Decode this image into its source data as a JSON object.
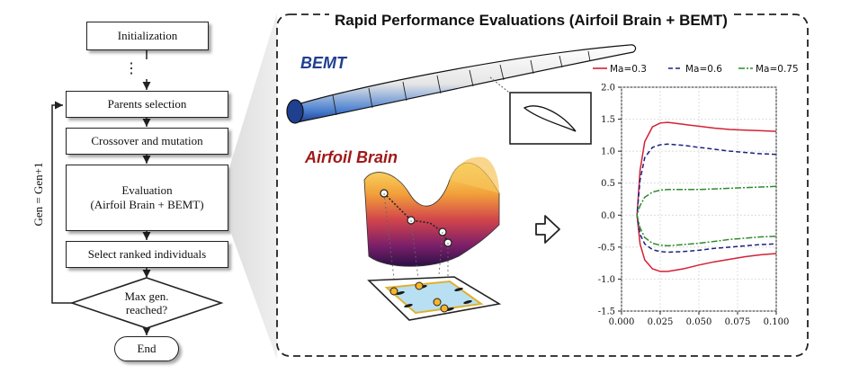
{
  "flowchart": {
    "steps": {
      "init": "Initialization",
      "ellipsis": "⋮",
      "parents": "Parents selection",
      "crossover": "Crossover and mutation",
      "eval_line1": "Evaluation",
      "eval_line2": "(Airfoil Brain + BEMT)",
      "select": "Select ranked individuals",
      "decision_line1": "Max gen.",
      "decision_line2": "reached?",
      "end": "End"
    },
    "loop_label": "Gen = Gen+1"
  },
  "panel": {
    "title": "Rapid Performance Evaluations (Airfoil Brain + BEMT)",
    "bemt_label": "BEMT",
    "airfoil_brain_label": "Airfoil Brain",
    "accent_colors": {
      "bemt": "#1f3f8f",
      "airfoil_brain": "#a01818",
      "blade": "#4a7fd0"
    }
  },
  "chart_data": {
    "type": "line",
    "x_ticks": [
      "0.000",
      "0.025",
      "0.050",
      "0.075",
      "0.100"
    ],
    "y_ticks": [
      "2.0",
      "1.5",
      "1.0",
      "0.5",
      "0.0",
      "-0.5",
      "-1.0",
      "-1.5"
    ],
    "xlim": [
      0,
      0.1
    ],
    "ylim": [
      -1.5,
      2.0
    ],
    "grid": true,
    "legend_placement": "top",
    "series": [
      {
        "name": "Ma=0.3",
        "color": "#d42035",
        "dash": "solid",
        "upper": [
          [
            0.01,
            0.0
          ],
          [
            0.012,
            0.7
          ],
          [
            0.015,
            1.15
          ],
          [
            0.02,
            1.38
          ],
          [
            0.025,
            1.44
          ],
          [
            0.03,
            1.45
          ],
          [
            0.04,
            1.42
          ],
          [
            0.05,
            1.39
          ],
          [
            0.06,
            1.36
          ],
          [
            0.07,
            1.34
          ],
          [
            0.08,
            1.33
          ],
          [
            0.09,
            1.32
          ],
          [
            0.1,
            1.31
          ]
        ],
        "lower": [
          [
            0.01,
            0.0
          ],
          [
            0.012,
            -0.45
          ],
          [
            0.015,
            -0.7
          ],
          [
            0.02,
            -0.84
          ],
          [
            0.025,
            -0.88
          ],
          [
            0.03,
            -0.88
          ],
          [
            0.04,
            -0.84
          ],
          [
            0.05,
            -0.78
          ],
          [
            0.06,
            -0.73
          ],
          [
            0.07,
            -0.69
          ],
          [
            0.08,
            -0.65
          ],
          [
            0.09,
            -0.62
          ],
          [
            0.1,
            -0.6
          ]
        ]
      },
      {
        "name": "Ma=0.6",
        "color": "#1a237e",
        "dash": "dashed",
        "upper": [
          [
            0.01,
            0.0
          ],
          [
            0.012,
            0.55
          ],
          [
            0.015,
            0.9
          ],
          [
            0.02,
            1.06
          ],
          [
            0.025,
            1.1
          ],
          [
            0.03,
            1.11
          ],
          [
            0.04,
            1.09
          ],
          [
            0.05,
            1.06
          ],
          [
            0.06,
            1.03
          ],
          [
            0.07,
            1.0
          ],
          [
            0.08,
            0.98
          ],
          [
            0.09,
            0.96
          ],
          [
            0.1,
            0.95
          ]
        ],
        "lower": [
          [
            0.01,
            0.0
          ],
          [
            0.012,
            -0.3
          ],
          [
            0.015,
            -0.45
          ],
          [
            0.02,
            -0.54
          ],
          [
            0.025,
            -0.57
          ],
          [
            0.03,
            -0.58
          ],
          [
            0.04,
            -0.57
          ],
          [
            0.05,
            -0.55
          ],
          [
            0.06,
            -0.52
          ],
          [
            0.07,
            -0.5
          ],
          [
            0.08,
            -0.48
          ],
          [
            0.09,
            -0.46
          ],
          [
            0.1,
            -0.45
          ]
        ]
      },
      {
        "name": "Ma=0.75",
        "color": "#2e8b2e",
        "dash": "dashdot",
        "upper": [
          [
            0.01,
            0.0
          ],
          [
            0.012,
            0.15
          ],
          [
            0.015,
            0.28
          ],
          [
            0.02,
            0.36
          ],
          [
            0.025,
            0.39
          ],
          [
            0.03,
            0.4
          ],
          [
            0.04,
            0.4
          ],
          [
            0.05,
            0.4
          ],
          [
            0.06,
            0.41
          ],
          [
            0.07,
            0.42
          ],
          [
            0.08,
            0.43
          ],
          [
            0.09,
            0.44
          ],
          [
            0.1,
            0.45
          ]
        ],
        "lower": [
          [
            0.01,
            0.0
          ],
          [
            0.012,
            -0.2
          ],
          [
            0.015,
            -0.35
          ],
          [
            0.02,
            -0.44
          ],
          [
            0.025,
            -0.47
          ],
          [
            0.03,
            -0.48
          ],
          [
            0.04,
            -0.46
          ],
          [
            0.05,
            -0.44
          ],
          [
            0.06,
            -0.41
          ],
          [
            0.07,
            -0.38
          ],
          [
            0.08,
            -0.36
          ],
          [
            0.09,
            -0.34
          ],
          [
            0.1,
            -0.33
          ]
        ]
      }
    ]
  }
}
